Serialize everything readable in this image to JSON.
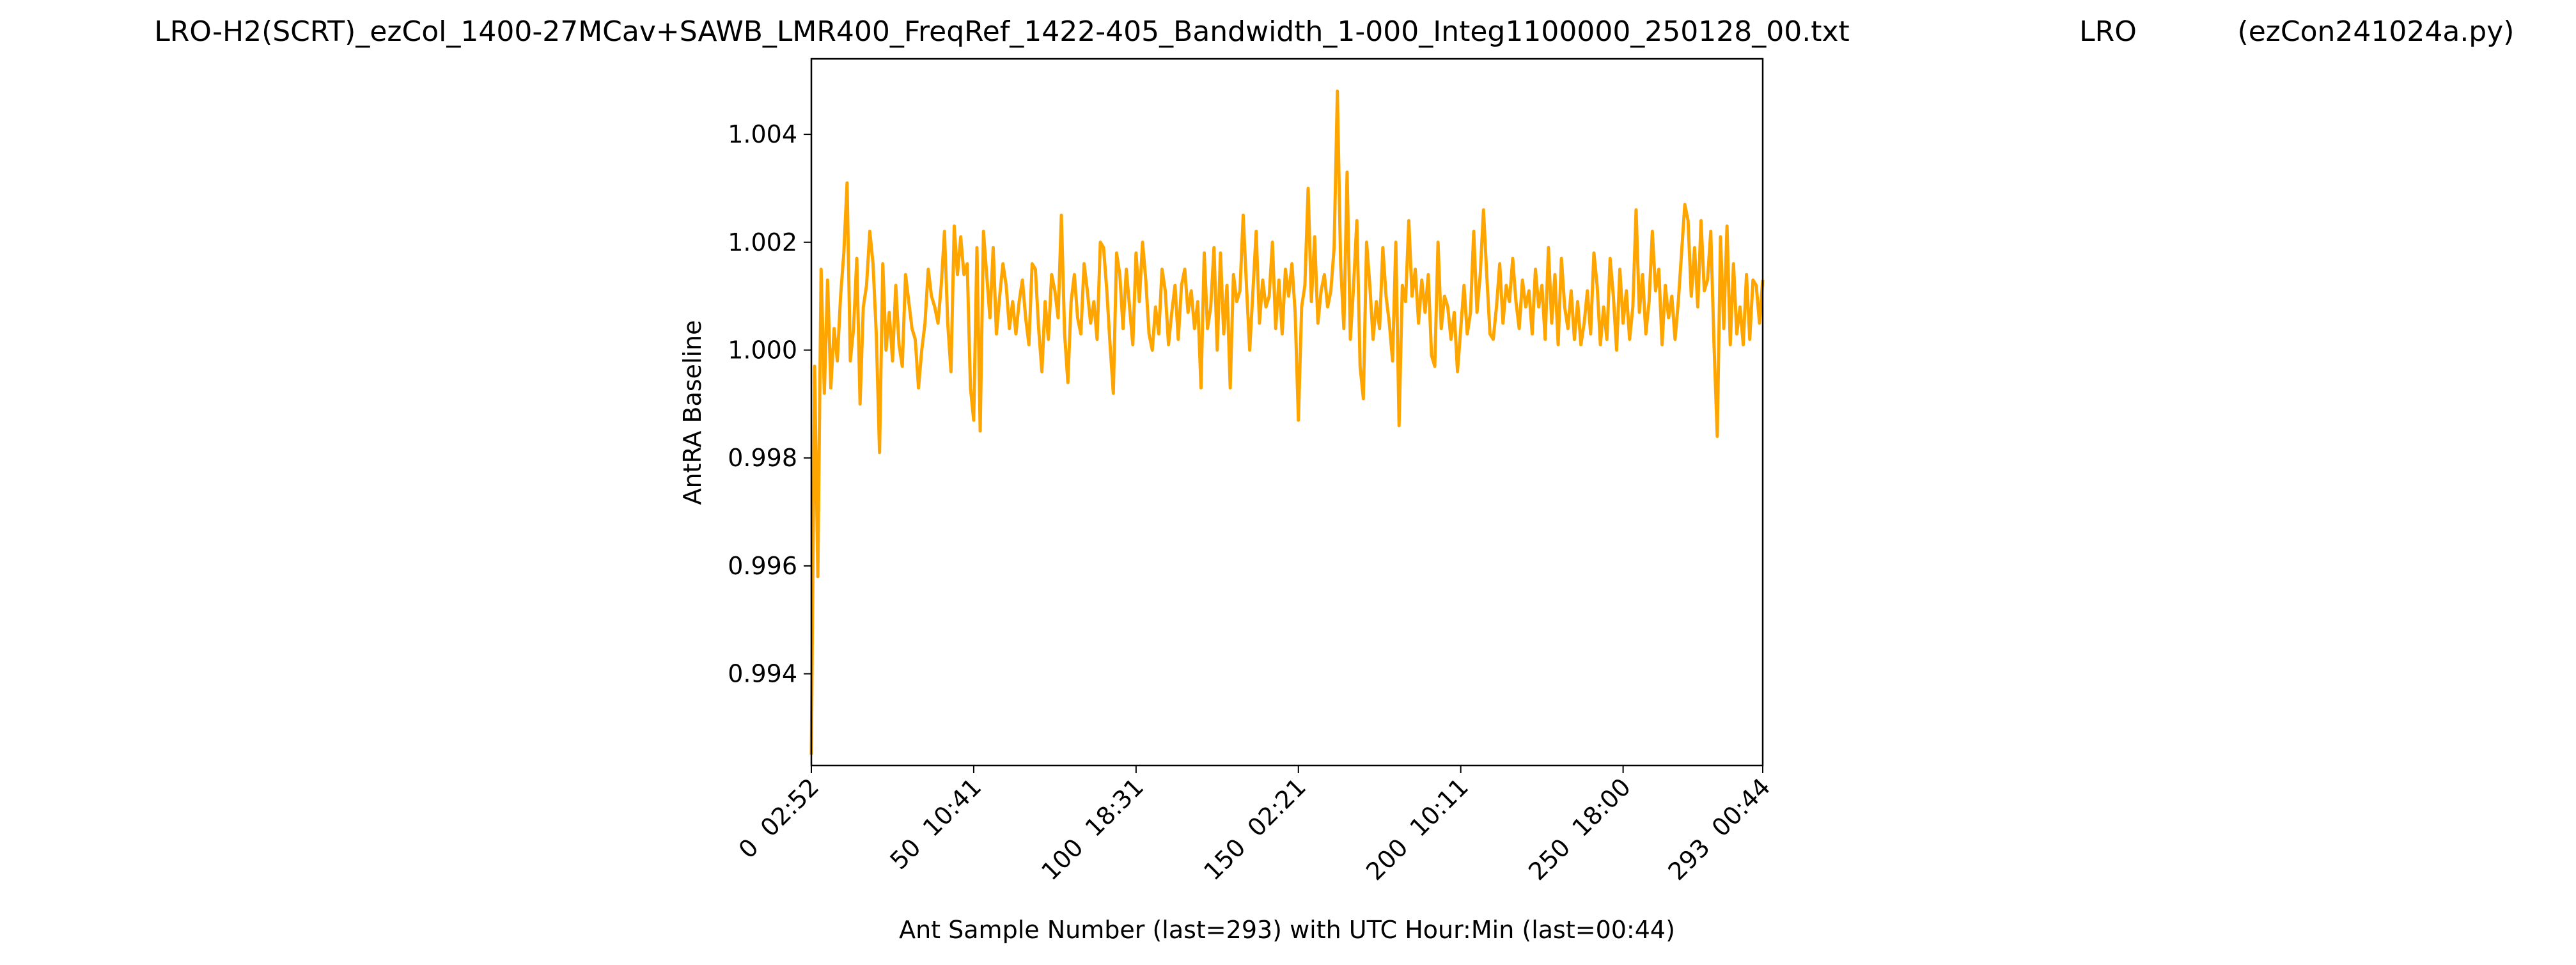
{
  "chart_data": {
    "type": "line",
    "title": "LRO-H2(SCRT)_ezCol_1400-27MCav+SAWB_LMR400_FreqRef_1422-405_Bandwidth_1-000_Integ1100000_250128_00.txt",
    "annotations": [
      "LRO",
      "(ezCon241024a.py)"
    ],
    "xlabel": "Ant Sample Number (last=293) with UTC Hour:Min (last=00:44)",
    "ylabel": "AntRA Baseline",
    "color": "#ffa500",
    "xlim": [
      0,
      293
    ],
    "xticks": [
      {
        "value": 0,
        "label": "0  02:52"
      },
      {
        "value": 50,
        "label": "50  10:41"
      },
      {
        "value": 100,
        "label": "100  18:31"
      },
      {
        "value": 150,
        "label": "150  02:21"
      },
      {
        "value": 200,
        "label": "200  10:11"
      },
      {
        "value": 250,
        "label": "250  18:00"
      },
      {
        "value": 293,
        "label": "293  00:44"
      }
    ],
    "ylim": [
      0.9923,
      1.0054
    ],
    "yticks": [
      0.994,
      0.996,
      0.998,
      1.0,
      1.002,
      1.004
    ],
    "ytick_labels": [
      "0.994",
      "0.996",
      "0.998",
      "1.000",
      "1.002",
      "1.004"
    ],
    "values": [
      0.9925,
      0.9997,
      0.9958,
      1.0015,
      0.9992,
      1.0013,
      0.9993,
      1.0004,
      0.9998,
      1.001,
      1.0018,
      1.0031,
      0.9998,
      1.0004,
      1.0017,
      0.999,
      1.0008,
      1.0012,
      1.0022,
      1.0016,
      1.0003,
      0.9981,
      1.0016,
      1.0,
      1.0007,
      0.9998,
      1.0012,
      1.0001,
      0.9997,
      1.0014,
      1.0009,
      1.0004,
      1.0002,
      0.9993,
      1.0,
      1.0005,
      1.0015,
      1.001,
      1.0008,
      1.0005,
      1.0012,
      1.0022,
      1.0005,
      0.9996,
      1.0023,
      1.0014,
      1.0021,
      1.0014,
      1.0016,
      0.9993,
      0.9987,
      1.0019,
      0.9985,
      1.0022,
      1.0014,
      1.0006,
      1.0019,
      1.0003,
      1.001,
      1.0016,
      1.0012,
      1.0004,
      1.0009,
      1.0003,
      1.0009,
      1.0013,
      1.0006,
      1.0001,
      1.0016,
      1.0015,
      1.0004,
      0.9996,
      1.0009,
      1.0002,
      1.0014,
      1.0011,
      1.0006,
      1.0025,
      1.0003,
      0.9994,
      1.0009,
      1.0014,
      1.0006,
      1.0003,
      1.0016,
      1.0011,
      1.0005,
      1.0009,
      1.0002,
      1.002,
      1.0019,
      1.0011,
      1.0001,
      0.9992,
      1.0018,
      1.0014,
      1.0004,
      1.0015,
      1.0008,
      1.0001,
      1.0018,
      1.0009,
      1.002,
      1.0013,
      1.0003,
      1.0,
      1.0008,
      1.0003,
      1.0015,
      1.0011,
      1.0001,
      1.0007,
      1.0012,
      1.0002,
      1.0012,
      1.0015,
      1.0007,
      1.0011,
      1.0004,
      1.0009,
      0.9993,
      1.0018,
      1.0004,
      1.0008,
      1.0019,
      1.0,
      1.0018,
      1.0003,
      1.0012,
      0.9993,
      1.0014,
      1.0009,
      1.0011,
      1.0025,
      1.0012,
      1.0,
      1.0011,
      1.0022,
      1.0005,
      1.0013,
      1.0008,
      1.001,
      1.002,
      1.0004,
      1.0013,
      1.0003,
      1.0015,
      1.001,
      1.0016,
      1.0007,
      0.9987,
      1.0008,
      1.0012,
      1.003,
      1.0009,
      1.0021,
      1.0005,
      1.0011,
      1.0014,
      1.0008,
      1.0011,
      1.0019,
      1.0048,
      1.0016,
      1.0004,
      1.0033,
      1.0002,
      1.0012,
      1.0024,
      0.9997,
      0.9991,
      1.002,
      1.0012,
      1.0002,
      1.0009,
      1.0004,
      1.0019,
      1.001,
      1.0005,
      0.9998,
      1.002,
      0.9986,
      1.0012,
      1.0009,
      1.0024,
      1.001,
      1.0015,
      1.0005,
      1.0013,
      1.0007,
      1.0014,
      0.9999,
      0.9997,
      1.002,
      1.0004,
      1.001,
      1.0008,
      1.0002,
      1.0007,
      0.9996,
      1.0004,
      1.0012,
      1.0003,
      1.0007,
      1.0022,
      1.0007,
      1.0014,
      1.0026,
      1.0014,
      1.0003,
      1.0002,
      1.0008,
      1.0016,
      1.0005,
      1.0012,
      1.0009,
      1.0017,
      1.0009,
      1.0004,
      1.0013,
      1.0008,
      1.0011,
      1.0003,
      1.0015,
      1.0008,
      1.0012,
      1.0002,
      1.0019,
      1.0005,
      1.0014,
      1.0001,
      1.0017,
      1.0008,
      1.0004,
      1.0011,
      1.0002,
      1.0009,
      1.0001,
      1.0005,
      1.0011,
      1.0003,
      1.0018,
      1.0012,
      1.0001,
      1.0008,
      1.0002,
      1.0017,
      1.001,
      1.0,
      1.0015,
      1.0005,
      1.0011,
      1.0002,
      1.0008,
      1.0026,
      1.0007,
      1.0014,
      1.0003,
      1.0009,
      1.0022,
      1.0011,
      1.0015,
      1.0001,
      1.0012,
      1.0006,
      1.001,
      1.0002,
      1.0009,
      1.0018,
      1.0027,
      1.0024,
      1.001,
      1.0019,
      1.0008,
      1.0024,
      1.0011,
      1.0013,
      1.0022,
      1.0001,
      0.9984,
      1.0021,
      1.0004,
      1.0023,
      1.0001,
      1.0016,
      1.0003,
      1.0008,
      1.0001,
      1.0014,
      1.0002,
      1.0013,
      1.0012,
      1.0005,
      1.0013
    ]
  }
}
